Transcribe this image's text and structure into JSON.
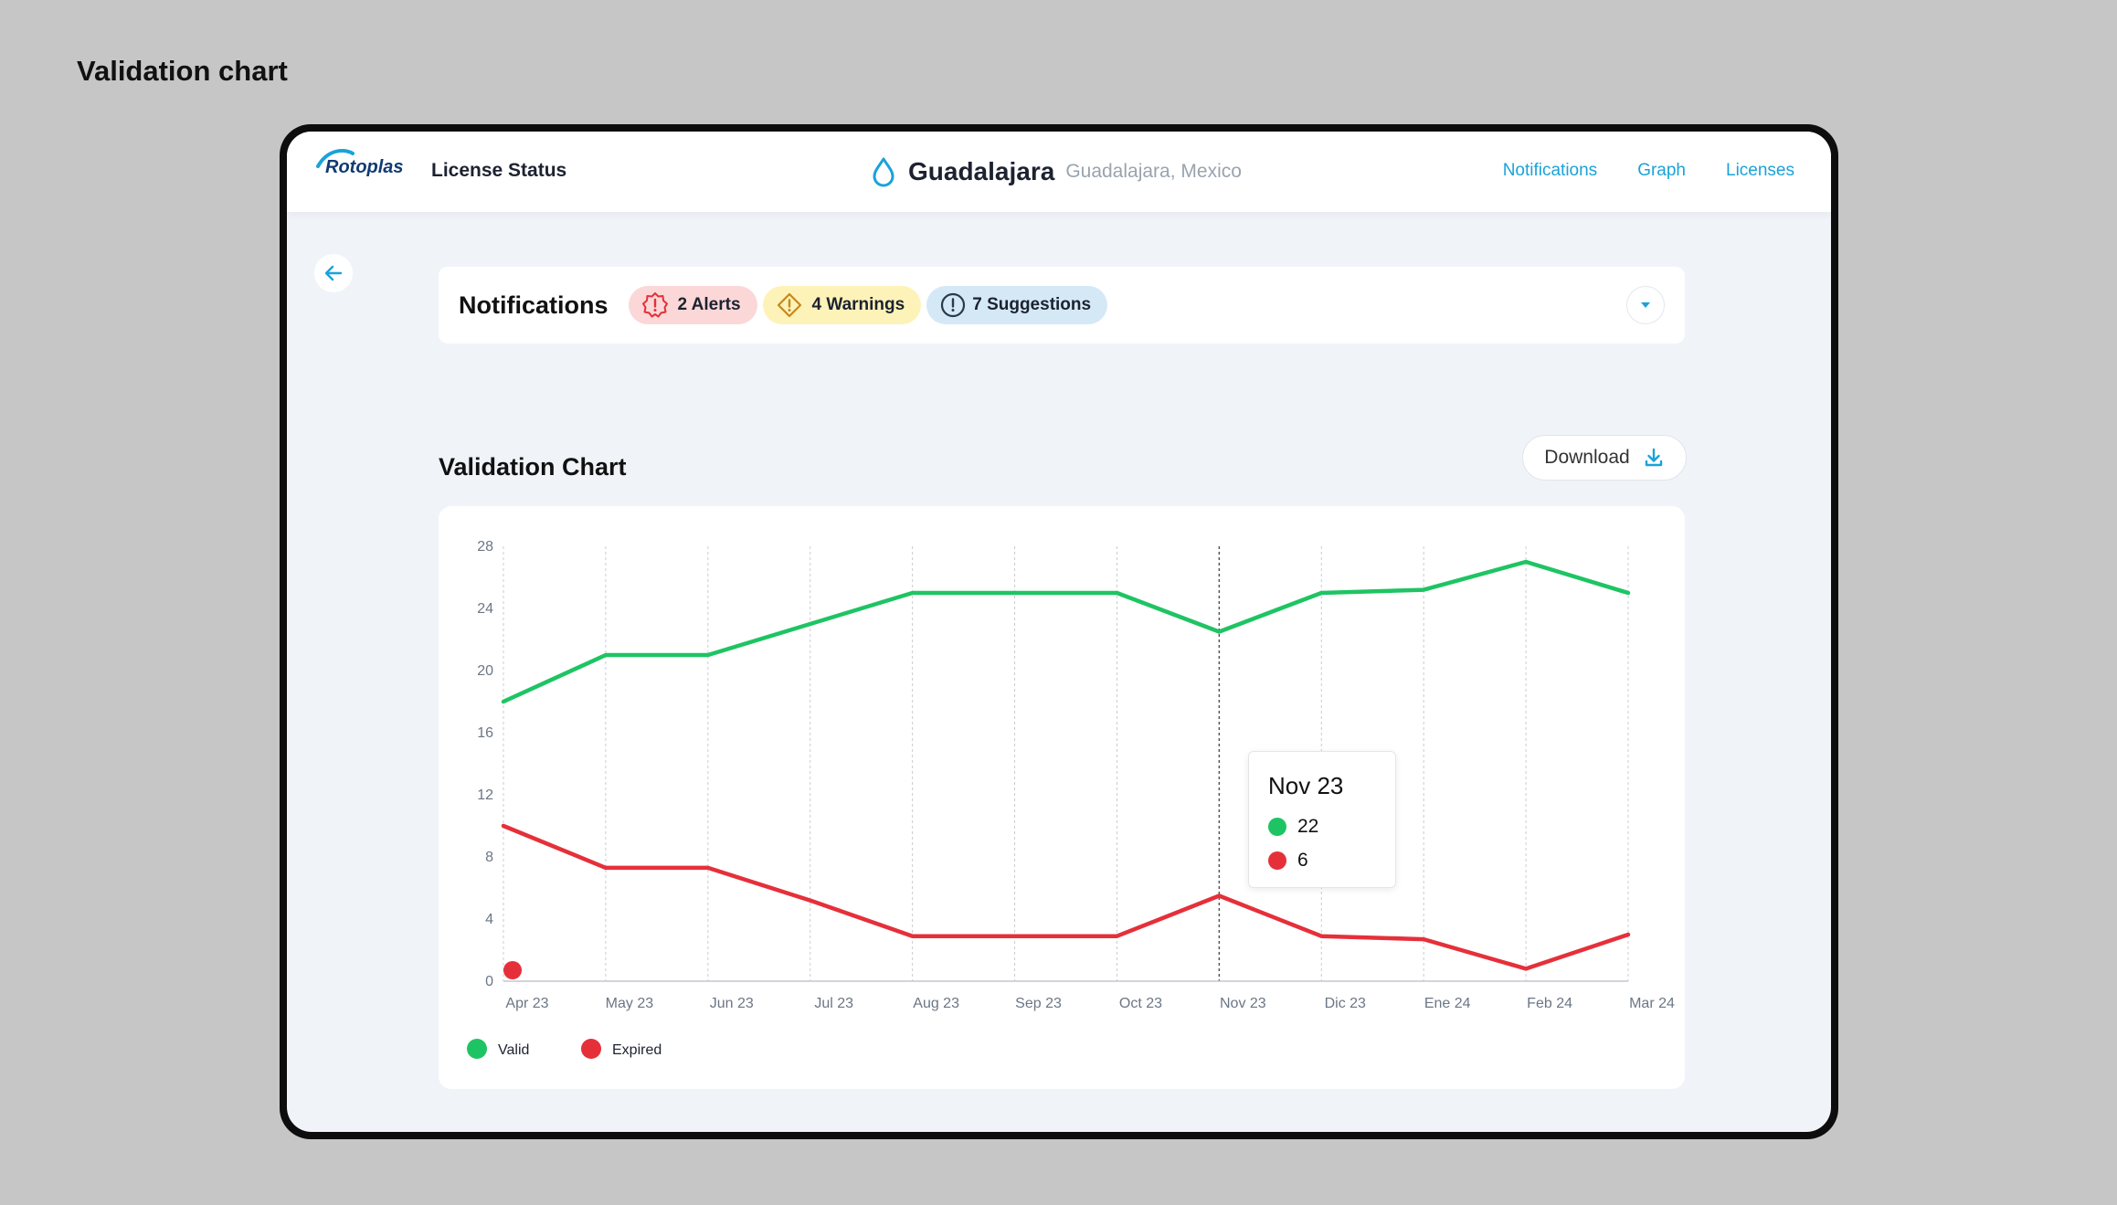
{
  "canvas_title": "Validation chart",
  "header": {
    "logo_text": "Rotoplas",
    "app_title": "License Status",
    "site_name": "Guadalajara",
    "site_location": "Guadalajara, Mexico",
    "nav": [
      "Notifications",
      "Graph",
      "Licenses"
    ]
  },
  "notifications": {
    "title": "Notifications",
    "alerts": "2 Alerts",
    "warnings": "4 Warnings",
    "suggestions": "7 Suggestions"
  },
  "section_title": "Validation Chart",
  "download_label": "Download",
  "colors": {
    "valid": "#1ec463",
    "expired": "#e5303a",
    "accent": "#1aa3d9",
    "alert_bg": "#fbd7d7",
    "warning_bg": "#fdf3b8",
    "suggestion_bg": "#d5e8f6"
  },
  "chart_data": {
    "type": "line",
    "categories": [
      "Apr 23",
      "May 23",
      "Jun 23",
      "Jul 23",
      "Aug 23",
      "Sep 23",
      "Oct 23",
      "Nov 23",
      "Dic 23",
      "Ene 24",
      "Feb 24",
      "Mar 24"
    ],
    "series": [
      {
        "name": "Valid",
        "values": [
          18,
          21,
          21,
          23,
          25,
          25,
          25,
          22.5,
          25,
          25.2,
          27,
          25
        ]
      },
      {
        "name": "Expired",
        "values": [
          10,
          7.3,
          7.3,
          5.2,
          2.9,
          2.9,
          2.9,
          5.5,
          2.9,
          2.7,
          0.8,
          3
        ]
      }
    ],
    "yticks": [
      0,
      4,
      8,
      12,
      16,
      20,
      24,
      28
    ],
    "ylim": [
      0,
      28
    ],
    "grid": "vertical-dashed",
    "legend_position": "bottom-left",
    "highlight": {
      "category": "Nov 23",
      "values": [
        "22",
        "6"
      ]
    }
  }
}
